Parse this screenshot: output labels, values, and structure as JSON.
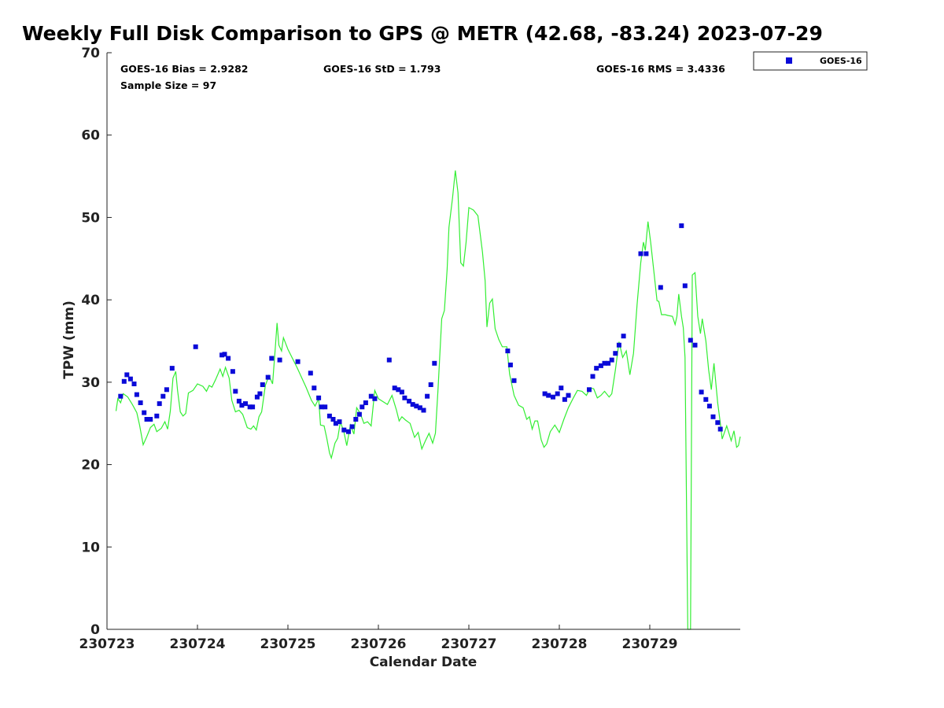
{
  "title": "Weekly Full Disk Comparison to GPS @ METR (42.68, -83.24) 2023-07-29",
  "stats": {
    "bias": "GOES-16 Bias = 2.9282",
    "std": "GOES-16 StD = 1.793",
    "rms": "GOES-16 RMS = 3.4336",
    "sample": "Sample Size = 97"
  },
  "legend": {
    "label": "GOES-16"
  },
  "colors": {
    "goes": "#0a0ad8",
    "gps": "#33ee33",
    "axis": "#222222"
  },
  "chart_data": {
    "type": "scatter",
    "xlabel": "Calendar Date",
    "ylabel": "TPW (mm)",
    "xlim": [
      0,
      7
    ],
    "ylim": [
      0,
      70
    ],
    "yticks": [
      0,
      10,
      20,
      30,
      40,
      50,
      60,
      70
    ],
    "xticks": [
      {
        "x": 0,
        "label": "230723"
      },
      {
        "x": 1,
        "label": "230724"
      },
      {
        "x": 2,
        "label": "230725"
      },
      {
        "x": 3,
        "label": "230726"
      },
      {
        "x": 4,
        "label": "230727"
      },
      {
        "x": 5,
        "label": "230728"
      },
      {
        "x": 6,
        "label": "230729"
      }
    ],
    "series": [
      {
        "name": "GOES-16",
        "mode": "markers",
        "points": [
          [
            0.15,
            28.3
          ],
          [
            0.19,
            30.1
          ],
          [
            0.22,
            30.9
          ],
          [
            0.26,
            30.4
          ],
          [
            0.3,
            29.8
          ],
          [
            0.33,
            28.5
          ],
          [
            0.37,
            27.5
          ],
          [
            0.41,
            26.3
          ],
          [
            0.44,
            25.5
          ],
          [
            0.48,
            25.5
          ],
          [
            0.55,
            25.9
          ],
          [
            0.58,
            27.4
          ],
          [
            0.62,
            28.3
          ],
          [
            0.66,
            29.1
          ],
          [
            0.72,
            31.7
          ],
          [
            0.98,
            34.3
          ],
          [
            1.27,
            33.3
          ],
          [
            1.3,
            33.4
          ],
          [
            1.34,
            32.9
          ],
          [
            1.39,
            31.3
          ],
          [
            1.42,
            28.9
          ],
          [
            1.46,
            27.7
          ],
          [
            1.49,
            27.2
          ],
          [
            1.53,
            27.4
          ],
          [
            1.58,
            27.0
          ],
          [
            1.61,
            27.0
          ],
          [
            1.66,
            28.2
          ],
          [
            1.69,
            28.6
          ],
          [
            1.72,
            29.7
          ],
          [
            1.78,
            30.6
          ],
          [
            1.82,
            32.9
          ],
          [
            1.91,
            32.7
          ],
          [
            2.11,
            32.5
          ],
          [
            2.25,
            31.1
          ],
          [
            2.29,
            29.3
          ],
          [
            2.34,
            28.1
          ],
          [
            2.37,
            27.0
          ],
          [
            2.41,
            27.0
          ],
          [
            2.46,
            25.9
          ],
          [
            2.5,
            25.5
          ],
          [
            2.53,
            25.0
          ],
          [
            2.57,
            25.2
          ],
          [
            2.62,
            24.2
          ],
          [
            2.67,
            24.0
          ],
          [
            2.71,
            24.6
          ],
          [
            2.75,
            25.5
          ],
          [
            2.79,
            26.1
          ],
          [
            2.82,
            27.0
          ],
          [
            2.86,
            27.5
          ],
          [
            2.92,
            28.3
          ],
          [
            2.96,
            28.0
          ],
          [
            3.12,
            32.7
          ],
          [
            3.18,
            29.3
          ],
          [
            3.22,
            29.1
          ],
          [
            3.26,
            28.8
          ],
          [
            3.29,
            28.1
          ],
          [
            3.34,
            27.7
          ],
          [
            3.38,
            27.3
          ],
          [
            3.42,
            27.1
          ],
          [
            3.46,
            26.9
          ],
          [
            3.5,
            26.6
          ],
          [
            3.54,
            28.3
          ],
          [
            3.58,
            29.7
          ],
          [
            3.62,
            32.3
          ],
          [
            4.43,
            33.8
          ],
          [
            4.46,
            32.1
          ],
          [
            4.5,
            30.2
          ],
          [
            4.84,
            28.6
          ],
          [
            4.88,
            28.4
          ],
          [
            4.93,
            28.2
          ],
          [
            4.98,
            28.6
          ],
          [
            5.02,
            29.3
          ],
          [
            5.06,
            27.9
          ],
          [
            5.1,
            28.4
          ],
          [
            5.33,
            29.1
          ],
          [
            5.37,
            30.7
          ],
          [
            5.41,
            31.7
          ],
          [
            5.46,
            32.0
          ],
          [
            5.5,
            32.3
          ],
          [
            5.54,
            32.3
          ],
          [
            5.58,
            32.7
          ],
          [
            5.62,
            33.5
          ],
          [
            5.66,
            34.5
          ],
          [
            5.71,
            35.6
          ],
          [
            5.9,
            45.6
          ],
          [
            5.96,
            45.6
          ],
          [
            6.12,
            41.5
          ],
          [
            6.35,
            49.0
          ],
          [
            6.39,
            41.7
          ],
          [
            6.45,
            35.1
          ],
          [
            6.5,
            34.5
          ],
          [
            6.57,
            28.8
          ],
          [
            6.62,
            27.9
          ],
          [
            6.66,
            27.1
          ],
          [
            6.7,
            25.8
          ],
          [
            6.75,
            25.1
          ],
          [
            6.78,
            24.3
          ]
        ]
      },
      {
        "name": "GPS",
        "mode": "line",
        "points": [
          [
            0.1,
            26.5
          ],
          [
            0.12,
            28.0
          ],
          [
            0.15,
            27.5
          ],
          [
            0.18,
            28.6
          ],
          [
            0.23,
            28.2
          ],
          [
            0.28,
            27.3
          ],
          [
            0.33,
            26.3
          ],
          [
            0.36,
            24.8
          ],
          [
            0.4,
            22.4
          ],
          [
            0.44,
            23.4
          ],
          [
            0.48,
            24.5
          ],
          [
            0.52,
            24.9
          ],
          [
            0.55,
            24.0
          ],
          [
            0.6,
            24.4
          ],
          [
            0.64,
            25.2
          ],
          [
            0.67,
            24.3
          ],
          [
            0.7,
            26.5
          ],
          [
            0.73,
            30.5
          ],
          [
            0.76,
            31.3
          ],
          [
            0.78,
            29.0
          ],
          [
            0.81,
            26.4
          ],
          [
            0.84,
            25.9
          ],
          [
            0.87,
            26.2
          ],
          [
            0.9,
            28.7
          ],
          [
            0.95,
            29.0
          ],
          [
            1.0,
            29.8
          ],
          [
            1.06,
            29.5
          ],
          [
            1.1,
            28.9
          ],
          [
            1.13,
            29.6
          ],
          [
            1.16,
            29.4
          ],
          [
            1.2,
            30.3
          ],
          [
            1.25,
            31.6
          ],
          [
            1.28,
            30.7
          ],
          [
            1.31,
            31.8
          ],
          [
            1.35,
            30.5
          ],
          [
            1.38,
            27.8
          ],
          [
            1.42,
            26.4
          ],
          [
            1.46,
            26.6
          ],
          [
            1.5,
            26.1
          ],
          [
            1.55,
            24.5
          ],
          [
            1.59,
            24.3
          ],
          [
            1.62,
            24.7
          ],
          [
            1.65,
            24.2
          ],
          [
            1.68,
            25.8
          ],
          [
            1.71,
            26.4
          ],
          [
            1.75,
            29.6
          ],
          [
            1.79,
            30.8
          ],
          [
            1.83,
            29.8
          ],
          [
            1.86,
            34.1
          ],
          [
            1.88,
            37.2
          ],
          [
            1.9,
            34.5
          ],
          [
            1.93,
            33.8
          ],
          [
            1.95,
            35.4
          ],
          [
            2.0,
            34.0
          ],
          [
            2.1,
            31.8
          ],
          [
            2.2,
            29.4
          ],
          [
            2.26,
            27.8
          ],
          [
            2.3,
            27.1
          ],
          [
            2.34,
            28.0
          ],
          [
            2.36,
            24.8
          ],
          [
            2.4,
            24.7
          ],
          [
            2.43,
            23.2
          ],
          [
            2.46,
            21.4
          ],
          [
            2.48,
            20.8
          ],
          [
            2.52,
            22.6
          ],
          [
            2.55,
            23.2
          ],
          [
            2.58,
            25.2
          ],
          [
            2.62,
            23.9
          ],
          [
            2.65,
            22.3
          ],
          [
            2.69,
            24.8
          ],
          [
            2.73,
            23.7
          ],
          [
            2.76,
            26.9
          ],
          [
            2.8,
            26.2
          ],
          [
            2.84,
            25.0
          ],
          [
            2.88,
            25.2
          ],
          [
            2.92,
            24.7
          ],
          [
            2.96,
            29.0
          ],
          [
            3.0,
            28.0
          ],
          [
            3.1,
            27.3
          ],
          [
            3.15,
            28.4
          ],
          [
            3.2,
            26.6
          ],
          [
            3.23,
            25.3
          ],
          [
            3.26,
            25.8
          ],
          [
            3.3,
            25.4
          ],
          [
            3.35,
            25.0
          ],
          [
            3.4,
            23.3
          ],
          [
            3.44,
            23.9
          ],
          [
            3.48,
            21.9
          ],
          [
            3.52,
            22.9
          ],
          [
            3.56,
            23.8
          ],
          [
            3.6,
            22.6
          ],
          [
            3.63,
            23.8
          ],
          [
            3.66,
            29.3
          ],
          [
            3.7,
            37.7
          ],
          [
            3.73,
            38.7
          ],
          [
            3.76,
            43.7
          ],
          [
            3.78,
            48.8
          ],
          [
            3.82,
            52.4
          ],
          [
            3.85,
            55.7
          ],
          [
            3.88,
            53.0
          ],
          [
            3.91,
            44.5
          ],
          [
            3.94,
            44.1
          ],
          [
            3.97,
            47.0
          ],
          [
            4.0,
            51.2
          ],
          [
            4.05,
            50.9
          ],
          [
            4.1,
            50.2
          ],
          [
            4.15,
            45.8
          ],
          [
            4.18,
            42.3
          ],
          [
            4.2,
            36.7
          ],
          [
            4.23,
            39.6
          ],
          [
            4.26,
            40.1
          ],
          [
            4.29,
            36.5
          ],
          [
            4.33,
            35.2
          ],
          [
            4.37,
            34.3
          ],
          [
            4.42,
            34.3
          ],
          [
            4.45,
            31.0
          ],
          [
            4.5,
            28.4
          ],
          [
            4.55,
            27.2
          ],
          [
            4.6,
            26.9
          ],
          [
            4.64,
            25.5
          ],
          [
            4.67,
            25.8
          ],
          [
            4.7,
            24.3
          ],
          [
            4.73,
            25.3
          ],
          [
            4.76,
            25.3
          ],
          [
            4.8,
            23.0
          ],
          [
            4.83,
            22.1
          ],
          [
            4.86,
            22.5
          ],
          [
            4.9,
            24.0
          ],
          [
            4.95,
            24.8
          ],
          [
            5.0,
            23.9
          ],
          [
            5.05,
            25.5
          ],
          [
            5.1,
            26.9
          ],
          [
            5.15,
            28.0
          ],
          [
            5.2,
            29.0
          ],
          [
            5.25,
            28.9
          ],
          [
            5.3,
            28.4
          ],
          [
            5.34,
            29.3
          ],
          [
            5.38,
            29.2
          ],
          [
            5.42,
            28.1
          ],
          [
            5.46,
            28.4
          ],
          [
            5.5,
            28.9
          ],
          [
            5.55,
            28.2
          ],
          [
            5.58,
            28.6
          ],
          [
            5.62,
            31.5
          ],
          [
            5.66,
            34.9
          ],
          [
            5.7,
            33.0
          ],
          [
            5.74,
            33.8
          ],
          [
            5.78,
            30.9
          ],
          [
            5.82,
            33.5
          ],
          [
            5.86,
            39.5
          ],
          [
            5.9,
            44.5
          ],
          [
            5.93,
            47.0
          ],
          [
            5.95,
            46.0
          ],
          [
            5.98,
            49.5
          ],
          [
            6.01,
            47.0
          ],
          [
            6.05,
            43.0
          ],
          [
            6.08,
            39.9
          ],
          [
            6.1,
            39.8
          ],
          [
            6.13,
            38.2
          ],
          [
            6.17,
            38.2
          ],
          [
            6.2,
            38.1
          ],
          [
            6.25,
            38.0
          ],
          [
            6.28,
            37.0
          ],
          [
            6.3,
            38.0
          ],
          [
            6.32,
            40.7
          ],
          [
            6.35,
            38.0
          ],
          [
            6.37,
            36.6
          ],
          [
            6.39,
            33.0
          ],
          [
            6.42,
            0.0
          ],
          [
            6.45,
            0.0
          ],
          [
            6.47,
            43.0
          ],
          [
            6.5,
            43.3
          ],
          [
            6.53,
            38.0
          ],
          [
            6.56,
            35.9
          ],
          [
            6.58,
            37.7
          ],
          [
            6.62,
            35.0
          ],
          [
            6.65,
            31.5
          ],
          [
            6.68,
            29.1
          ],
          [
            6.71,
            32.3
          ],
          [
            6.75,
            27.5
          ],
          [
            6.78,
            25.0
          ],
          [
            6.8,
            23.1
          ],
          [
            6.85,
            24.7
          ],
          [
            6.9,
            22.9
          ],
          [
            6.93,
            24.1
          ],
          [
            6.96,
            22.1
          ],
          [
            6.98,
            22.3
          ],
          [
            7.0,
            23.4
          ]
        ]
      }
    ]
  }
}
